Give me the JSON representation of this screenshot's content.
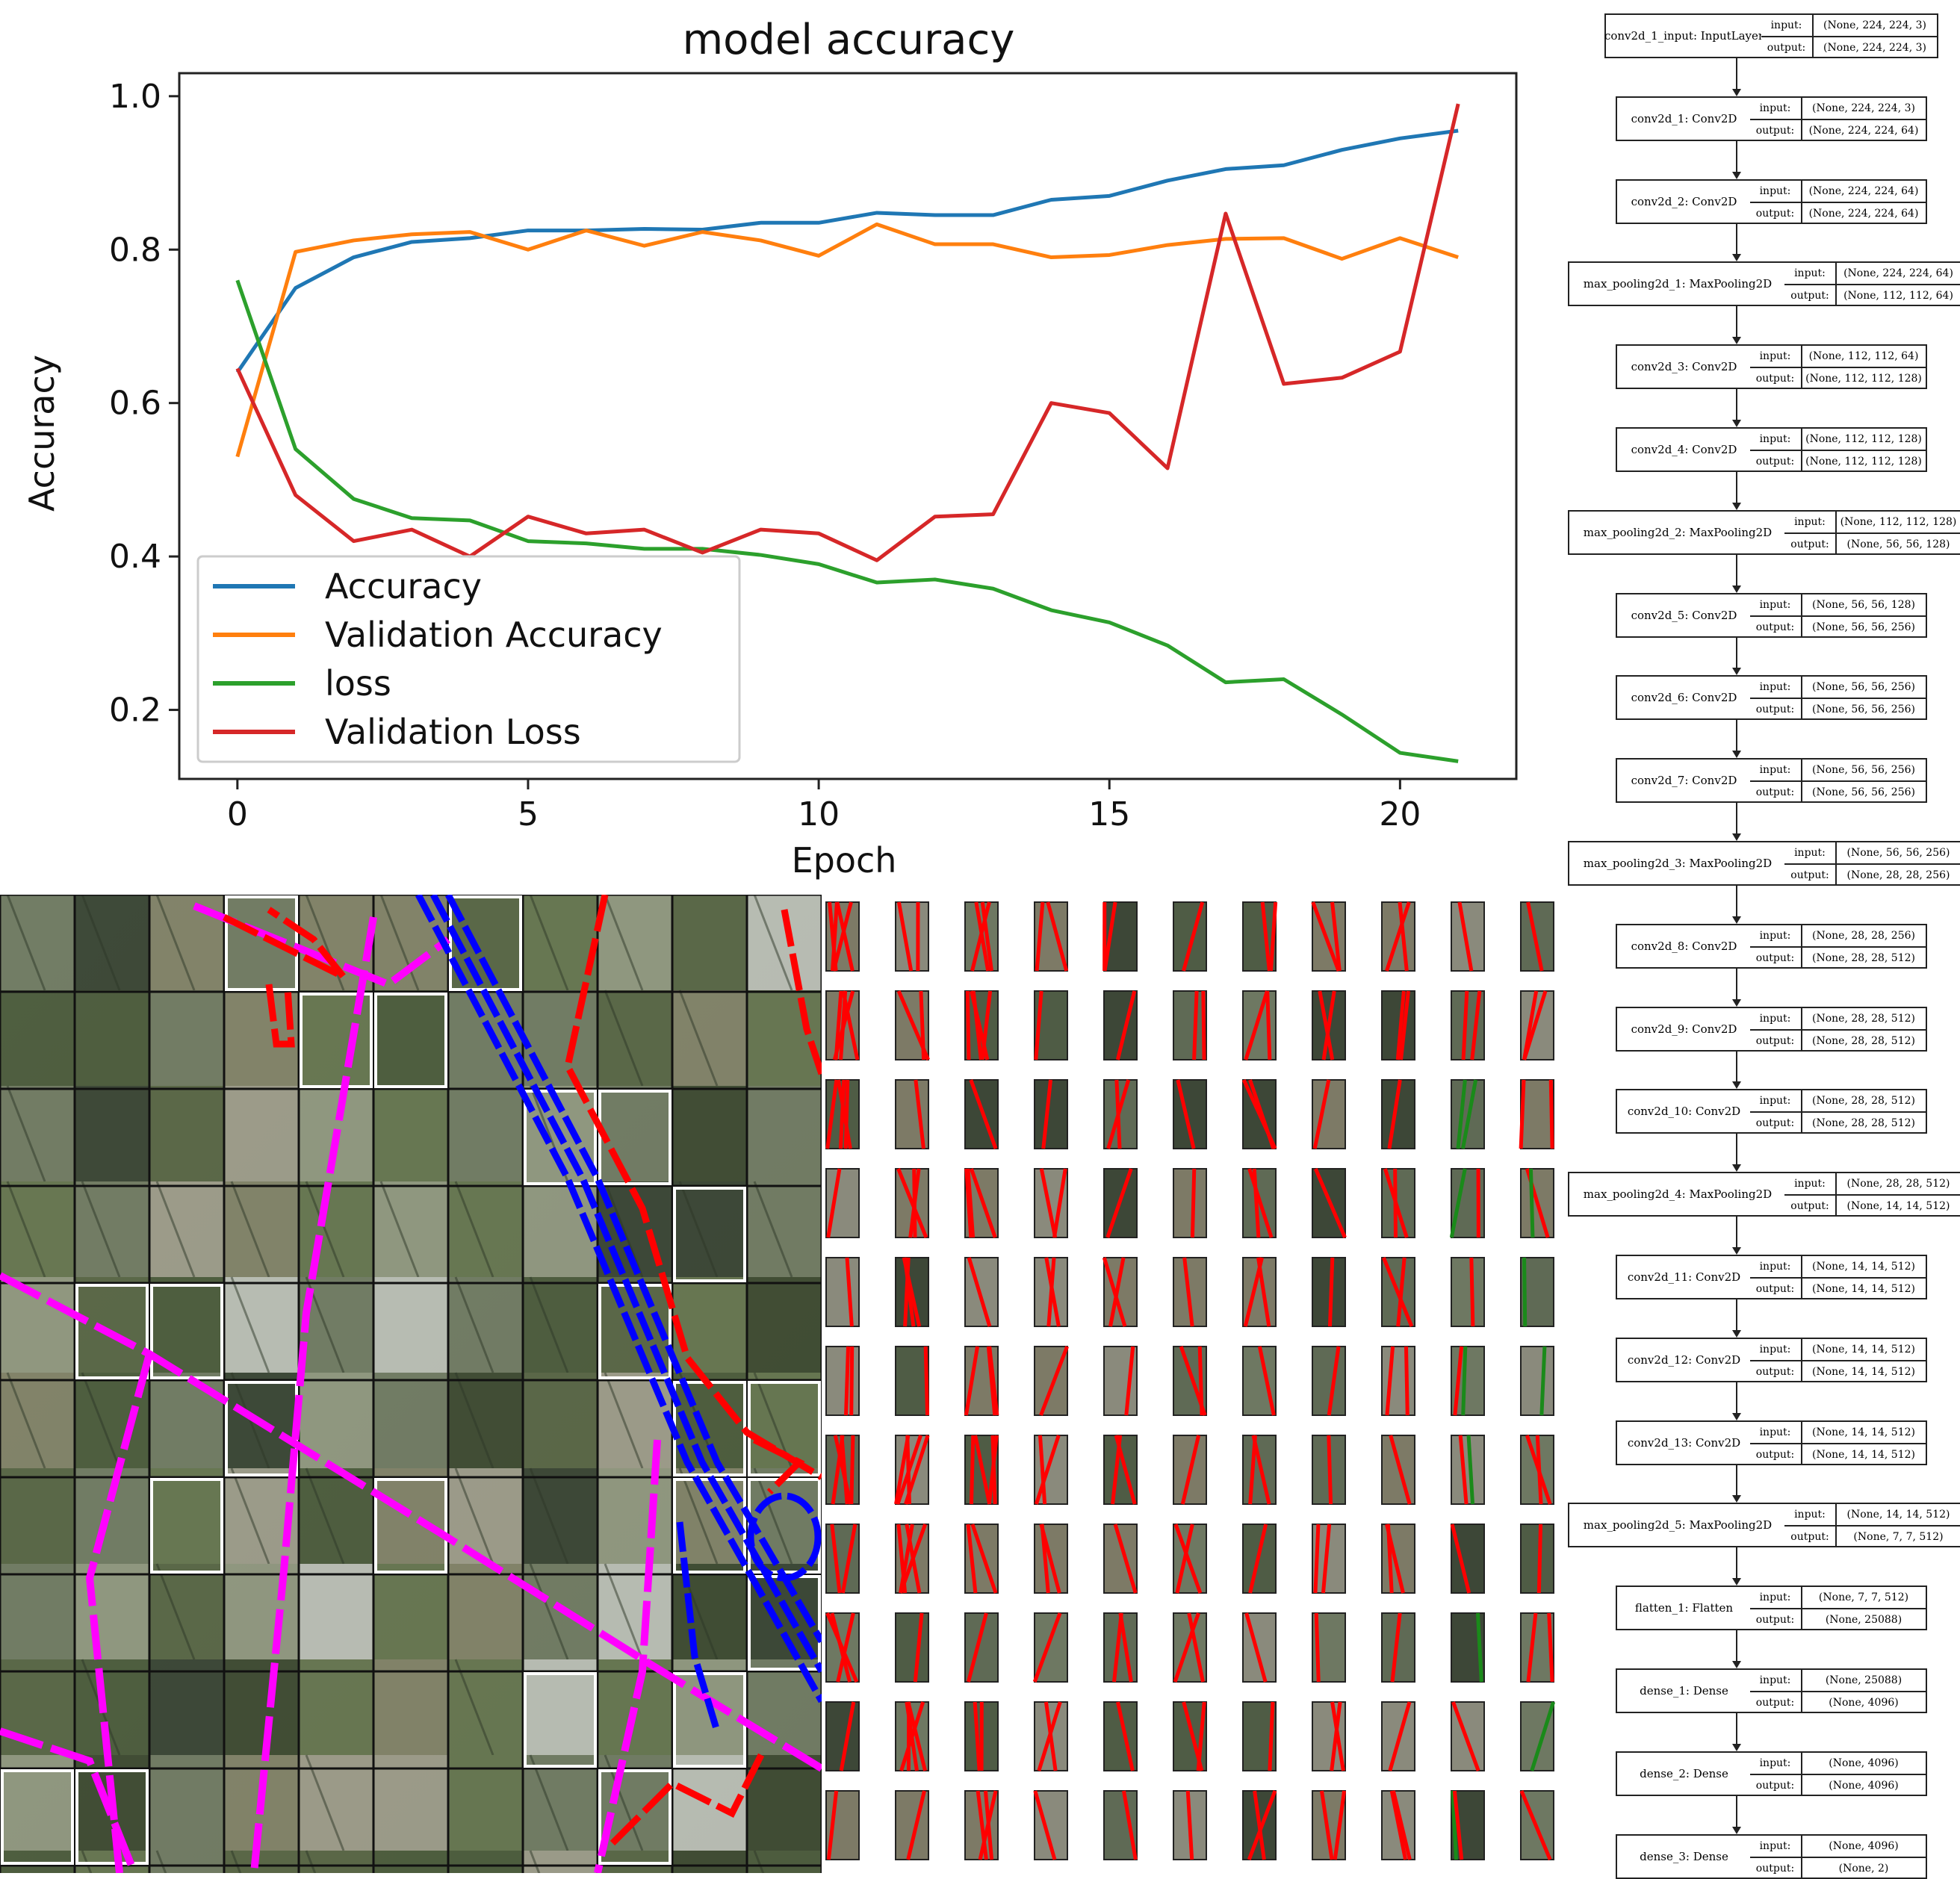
{
  "chart_data": {
    "type": "line",
    "title": "model accuracy",
    "xlabel": "Epoch",
    "ylabel": "Accuracy",
    "xlim": [
      -1,
      22
    ],
    "ylim": [
      0.11,
      1.03
    ],
    "xticks": [
      0,
      5,
      10,
      15,
      20
    ],
    "yticks": [
      0.2,
      0.4,
      0.6,
      0.8,
      1.0
    ],
    "ytick_labels": [
      "0.2",
      "0.4",
      "0.6",
      "0.8",
      "1.0"
    ],
    "legend_position": "lower-left",
    "x": [
      0,
      1,
      2,
      3,
      4,
      5,
      6,
      7,
      8,
      9,
      10,
      11,
      12,
      13,
      14,
      15,
      16,
      17,
      18,
      19,
      20,
      21
    ],
    "series": [
      {
        "name": "Accuracy",
        "color": "#1f77b4",
        "values": [
          0.64,
          0.75,
          0.79,
          0.81,
          0.815,
          0.825,
          0.825,
          0.827,
          0.826,
          0.835,
          0.835,
          0.848,
          0.845,
          0.845,
          0.865,
          0.87,
          0.89,
          0.905,
          0.91,
          0.93,
          0.945,
          0.955
        ]
      },
      {
        "name": "Validation Accuracy",
        "color": "#ff7f0e",
        "values": [
          0.53,
          0.797,
          0.812,
          0.82,
          0.823,
          0.8,
          0.825,
          0.805,
          0.823,
          0.812,
          0.792,
          0.833,
          0.807,
          0.807,
          0.79,
          0.793,
          0.806,
          0.814,
          0.815,
          0.788,
          0.815,
          0.79
        ]
      },
      {
        "name": "loss",
        "color": "#2ca02c",
        "values": [
          0.76,
          0.54,
          0.475,
          0.45,
          0.447,
          0.42,
          0.417,
          0.41,
          0.41,
          0.402,
          0.39,
          0.366,
          0.37,
          0.358,
          0.33,
          0.314,
          0.284,
          0.236,
          0.24,
          0.194,
          0.144,
          0.133
        ]
      },
      {
        "name": "Validation Loss",
        "color": "#d62728",
        "values": [
          0.645,
          0.48,
          0.42,
          0.435,
          0.4,
          0.452,
          0.43,
          0.435,
          0.405,
          0.435,
          0.43,
          0.395,
          0.452,
          0.455,
          0.6,
          0.587,
          0.515,
          0.847,
          0.625,
          0.633,
          0.667,
          0.99
        ]
      }
    ]
  },
  "aerial": {
    "magenta_color": "#ff00ff",
    "blue_color": "#0000ff",
    "red_color": "#ff0000"
  },
  "architecture": [
    {
      "name": "conv2d_1_input: InputLayer",
      "input": "(None, 224, 224, 3)",
      "output": "(None, 224, 224, 3)"
    },
    {
      "name": "conv2d_1: Conv2D",
      "input": "(None, 224, 224, 3)",
      "output": "(None, 224, 224, 64)"
    },
    {
      "name": "conv2d_2: Conv2D",
      "input": "(None, 224, 224, 64)",
      "output": "(None, 224, 224, 64)"
    },
    {
      "name": "max_pooling2d_1: MaxPooling2D",
      "input": "(None, 224, 224, 64)",
      "output": "(None, 112, 112, 64)"
    },
    {
      "name": "conv2d_3: Conv2D",
      "input": "(None, 112, 112, 64)",
      "output": "(None, 112, 112, 128)"
    },
    {
      "name": "conv2d_4: Conv2D",
      "input": "(None, 112, 112, 128)",
      "output": "(None, 112, 112, 128)"
    },
    {
      "name": "max_pooling2d_2: MaxPooling2D",
      "input": "(None, 112, 112, 128)",
      "output": "(None, 56, 56, 128)"
    },
    {
      "name": "conv2d_5: Conv2D",
      "input": "(None, 56, 56, 128)",
      "output": "(None, 56, 56, 256)"
    },
    {
      "name": "conv2d_6: Conv2D",
      "input": "(None, 56, 56, 256)",
      "output": "(None, 56, 56, 256)"
    },
    {
      "name": "conv2d_7: Conv2D",
      "input": "(None, 56, 56, 256)",
      "output": "(None, 56, 56, 256)"
    },
    {
      "name": "max_pooling2d_3: MaxPooling2D",
      "input": "(None, 56, 56, 256)",
      "output": "(None, 28, 28, 256)"
    },
    {
      "name": "conv2d_8: Conv2D",
      "input": "(None, 28, 28, 256)",
      "output": "(None, 28, 28, 512)"
    },
    {
      "name": "conv2d_9: Conv2D",
      "input": "(None, 28, 28, 512)",
      "output": "(None, 28, 28, 512)"
    },
    {
      "name": "conv2d_10: Conv2D",
      "input": "(None, 28, 28, 512)",
      "output": "(None, 28, 28, 512)"
    },
    {
      "name": "max_pooling2d_4: MaxPooling2D",
      "input": "(None, 28, 28, 512)",
      "output": "(None, 14, 14, 512)"
    },
    {
      "name": "conv2d_11: Conv2D",
      "input": "(None, 14, 14, 512)",
      "output": "(None, 14, 14, 512)"
    },
    {
      "name": "conv2d_12: Conv2D",
      "input": "(None, 14, 14, 512)",
      "output": "(None, 14, 14, 512)"
    },
    {
      "name": "conv2d_13: Conv2D",
      "input": "(None, 14, 14, 512)",
      "output": "(None, 14, 14, 512)"
    },
    {
      "name": "max_pooling2d_5: MaxPooling2D",
      "input": "(None, 14, 14, 512)",
      "output": "(None, 7, 7, 512)"
    },
    {
      "name": "flatten_1: Flatten",
      "input": "(None, 7, 7, 512)",
      "output": "(None, 25088)"
    },
    {
      "name": "dense_1: Dense",
      "input": "(None, 25088)",
      "output": "(None, 4096)"
    },
    {
      "name": "dense_2: Dense",
      "input": "(None, 4096)",
      "output": "(None, 4096)"
    },
    {
      "name": "dense_3: Dense",
      "input": "(None, 4096)",
      "output": "(None, 2)"
    }
  ],
  "io_labels": {
    "input": "input:",
    "output": "output:"
  }
}
